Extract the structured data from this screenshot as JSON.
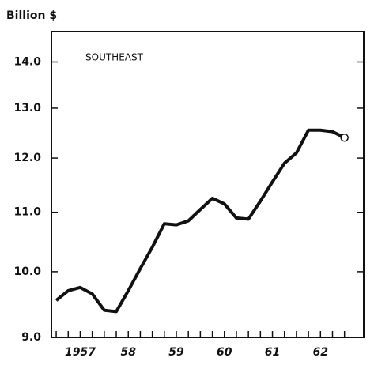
{
  "chart_data": {
    "type": "line",
    "y_label": "Billion $",
    "annotation": "SOUTHEAST",
    "x": [
      1957.0,
      1957.25,
      1957.5,
      1957.75,
      1958.0,
      1958.25,
      1958.5,
      1958.75,
      1959.0,
      1959.25,
      1959.5,
      1959.75,
      1960.0,
      1960.25,
      1960.5,
      1960.75,
      1961.0,
      1961.25,
      1961.5,
      1961.75,
      1962.0,
      1962.25,
      1962.5,
      1962.75,
      1963.0
    ],
    "series": [
      {
        "color": "#111111",
        "values": [
          9.55,
          9.7,
          9.75,
          9.65,
          9.4,
          9.38,
          9.7,
          10.05,
          10.4,
          10.8,
          10.78,
          10.85,
          11.05,
          11.25,
          11.15,
          10.9,
          10.88,
          11.2,
          11.55,
          11.9,
          12.1,
          12.55,
          12.55,
          12.52,
          12.4
        ]
      }
    ],
    "xlim": [
      1956.9,
      1963.4
    ],
    "xticks": [
      {
        "value": 1957.5,
        "label": "1957"
      },
      {
        "value": 1958.5,
        "label": "58"
      },
      {
        "value": 1959.5,
        "label": "59"
      },
      {
        "value": 1960.5,
        "label": "60"
      },
      {
        "value": 1961.5,
        "label": "61"
      },
      {
        "value": 1962.5,
        "label": "62"
      }
    ],
    "ylim": [
      9.0,
      14.7
    ],
    "yticks": [
      {
        "value": 9.0,
        "label": "9.0"
      },
      {
        "value": 10.0,
        "label": "10.0"
      },
      {
        "value": 11.0,
        "label": "11.0"
      },
      {
        "value": 12.0,
        "label": "12.0"
      },
      {
        "value": 13.0,
        "label": "13.0"
      },
      {
        "value": 14.0,
        "label": "14.0"
      }
    ],
    "log_scale": true
  }
}
